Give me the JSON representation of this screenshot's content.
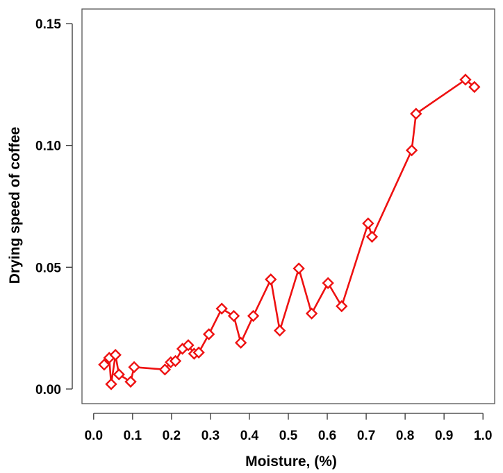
{
  "chart_data": {
    "type": "line",
    "title": "",
    "xlabel": "Moisture, (%)",
    "ylabel": "Drying speed of coffee",
    "xlim": [
      -0.03,
      1.03
    ],
    "ylim": [
      -0.006,
      0.156
    ],
    "x_ticks": [
      0.0,
      0.1,
      0.2,
      0.3,
      0.4,
      0.5,
      0.6,
      0.7,
      0.8,
      0.9,
      1.0
    ],
    "x_tick_labels": [
      "0.0",
      "0.1",
      "0.2",
      "0.3",
      "0.4",
      "0.5",
      "0.6",
      "0.7",
      "0.8",
      "0.9",
      "1.0"
    ],
    "y_ticks": [
      0.0,
      0.05,
      0.1,
      0.15
    ],
    "y_tick_labels": [
      "0.00",
      "0.05",
      "0.10",
      "0.15"
    ],
    "grid": false,
    "marker": "diamond",
    "color": "#ee1111",
    "series": [
      {
        "x": [
          0.027,
          0.04,
          0.045,
          0.056,
          0.065,
          0.095,
          0.104,
          0.183,
          0.198,
          0.21,
          0.228,
          0.243,
          0.258,
          0.27,
          0.296,
          0.329,
          0.36,
          0.378,
          0.41,
          0.455,
          0.478,
          0.527,
          0.56,
          0.602,
          0.637,
          0.705,
          0.715,
          0.817,
          0.828,
          0.955,
          0.978
        ],
        "y": [
          0.01,
          0.0128,
          0.002,
          0.014,
          0.006,
          0.003,
          0.009,
          0.008,
          0.011,
          0.0115,
          0.0165,
          0.018,
          0.0145,
          0.015,
          0.0225,
          0.033,
          0.03,
          0.019,
          0.03,
          0.045,
          0.024,
          0.0495,
          0.031,
          0.0435,
          0.034,
          0.068,
          0.0625,
          0.098,
          0.113,
          0.127,
          0.124
        ]
      }
    ]
  }
}
